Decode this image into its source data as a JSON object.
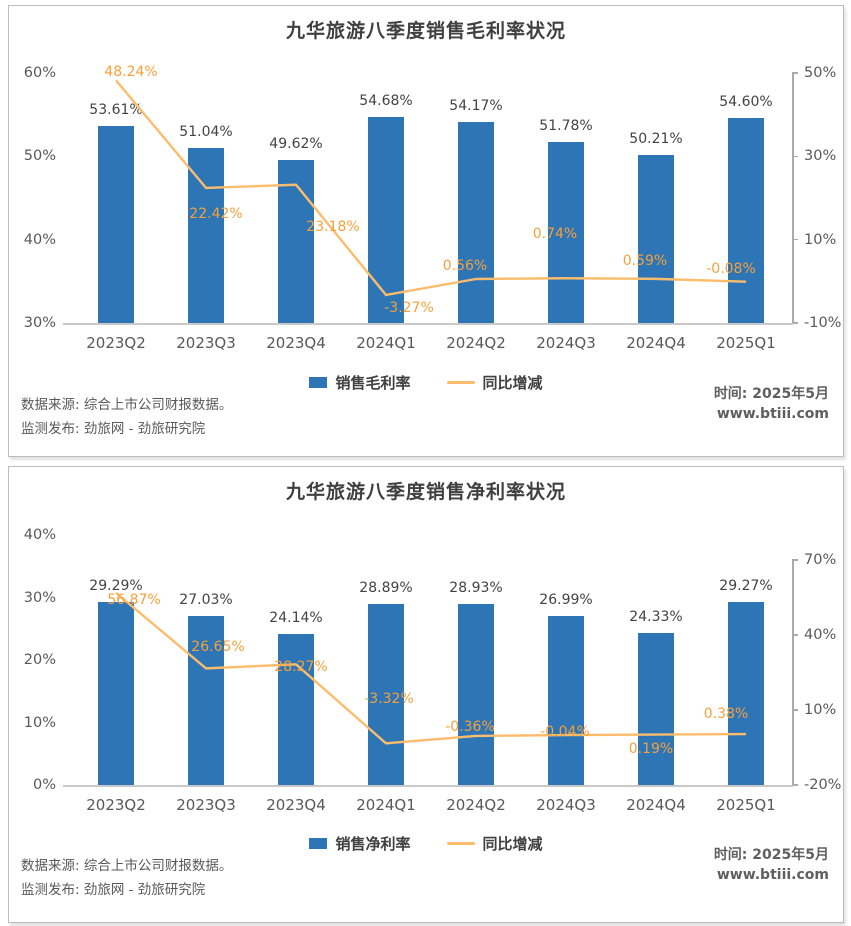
{
  "colors": {
    "bar": "#2E75B6",
    "line": "#FBBD6C",
    "line_label": "#F5A13A",
    "bar_label": "#434343",
    "axis_text": "#595959",
    "title_text": "#404040",
    "panel_border": "#BCBCBC"
  },
  "chart_data": [
    {
      "id": "gross-margin",
      "type": "bar+line",
      "title": "九华旅游八季度销售毛利率状况",
      "categories": [
        "2023Q2",
        "2023Q3",
        "2023Q4",
        "2024Q1",
        "2024Q2",
        "2024Q3",
        "2024Q4",
        "2025Q1"
      ],
      "series": [
        {
          "name": "销售毛利率",
          "type": "bar",
          "axis": "left",
          "unit": "%",
          "values": [
            53.61,
            51.04,
            49.62,
            54.68,
            54.17,
            51.78,
            50.21,
            54.6
          ],
          "labels": [
            "53.61%",
            "51.04%",
            "49.62%",
            "54.68%",
            "54.17%",
            "51.78%",
            "50.21%",
            "54.60%"
          ]
        },
        {
          "name": "同比增减",
          "type": "line",
          "axis": "right",
          "unit": "%",
          "values": [
            48.24,
            22.42,
            23.18,
            -3.27,
            0.56,
            0.74,
            0.59,
            -0.08
          ],
          "labels": [
            "48.24%",
            "22.42%",
            "23.18%",
            "-3.27%",
            "0.56%",
            "0.74%",
            "0.59%",
            "-0.08%"
          ],
          "label_offsets": [
            [
              15,
              -8
            ],
            [
              10,
              26
            ],
            [
              37,
              42
            ],
            [
              23,
              13
            ],
            [
              -11,
              -13
            ],
            [
              -11,
              -44
            ],
            [
              -11,
              -18
            ],
            [
              -15,
              -13
            ]
          ]
        }
      ],
      "left_axis": {
        "min": 30,
        "max": 60,
        "ticks": [
          {
            "value": 60,
            "label": "60%"
          },
          {
            "value": 50,
            "label": "50%"
          },
          {
            "value": 40,
            "label": "40%"
          },
          {
            "value": 30,
            "label": "30%"
          }
        ]
      },
      "right_axis": {
        "min": -10,
        "max": 50,
        "ticks": [
          {
            "value": 50,
            "label": "50%"
          },
          {
            "value": 30,
            "label": "30%"
          },
          {
            "value": 10,
            "label": "10%"
          },
          {
            "value": -10,
            "label": "-10%"
          }
        ]
      },
      "grid": false,
      "legend_position": "bottom",
      "footer": {
        "source_line1": "数据来源: 综合上市公司财报数据。",
        "source_line2": "监测发布: 劲旅网 - 劲旅研究院",
        "time": "时间: 2025年5月",
        "site": "www.btiii.com"
      }
    },
    {
      "id": "net-margin",
      "type": "bar+line",
      "title": "九华旅游八季度销售净利率状况",
      "categories": [
        "2023Q2",
        "2023Q3",
        "2023Q4",
        "2024Q1",
        "2024Q2",
        "2024Q3",
        "2024Q4",
        "2025Q1"
      ],
      "series": [
        {
          "name": "销售净利率",
          "type": "bar",
          "axis": "left",
          "unit": "%",
          "values": [
            29.29,
            27.03,
            24.14,
            28.89,
            28.93,
            26.99,
            24.33,
            29.27
          ],
          "labels": [
            "29.29%",
            "27.03%",
            "24.14%",
            "28.89%",
            "28.93%",
            "26.99%",
            "24.33%",
            "29.27%"
          ]
        },
        {
          "name": "同比增减",
          "type": "line",
          "axis": "right",
          "unit": "%",
          "values": [
            56.87,
            26.65,
            28.27,
            -3.32,
            -0.36,
            -0.04,
            0.19,
            0.38
          ],
          "labels": [
            "56.87%",
            "26.65%",
            "28.27%",
            "-3.32%",
            "-0.36%",
            "-0.04%",
            "0.19%",
            "0.38%"
          ],
          "label_offsets": [
            [
              18,
              7
            ],
            [
              12,
              -21
            ],
            [
              5,
              3
            ],
            [
              3,
              -44
            ],
            [
              -6,
              -9
            ],
            [
              -1,
              -3
            ],
            [
              -5,
              14
            ],
            [
              -20,
              -20
            ]
          ]
        }
      ],
      "left_axis": {
        "min": 0,
        "max": 40,
        "ticks": [
          {
            "value": 40,
            "label": "40%"
          },
          {
            "value": 30,
            "label": "30%"
          },
          {
            "value": 20,
            "label": "20%"
          },
          {
            "value": 10,
            "label": "10%"
          },
          {
            "value": 0,
            "label": "0%"
          }
        ]
      },
      "right_axis": {
        "min": -20,
        "max": 70,
        "ticks": [
          {
            "value": 70,
            "label": "70%"
          },
          {
            "value": 40,
            "label": "40%"
          },
          {
            "value": 10,
            "label": "10%"
          },
          {
            "value": -20,
            "label": "-20%"
          }
        ]
      },
      "grid": false,
      "legend_position": "bottom",
      "footer": {
        "source_line1": "数据来源: 综合上市公司财报数据。",
        "source_line2": "监测发布: 劲旅网 - 劲旅研究院",
        "time": "时间: 2025年5月",
        "site": "www.btiii.com"
      }
    }
  ]
}
